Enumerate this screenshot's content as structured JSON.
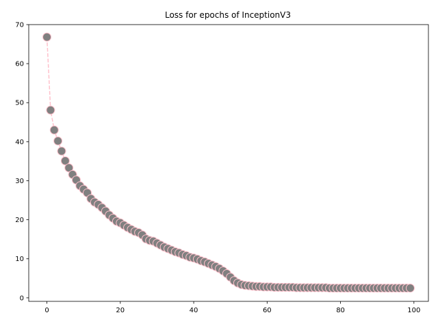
{
  "chart_data": {
    "type": "scatter",
    "title": "Loss for epochs of InceptionV3",
    "xlabel": "",
    "ylabel": "",
    "xlim": [
      -4.95,
      103.95
    ],
    "ylim": [
      -0.9,
      70
    ],
    "xticks": [
      0,
      20,
      40,
      60,
      80,
      100
    ],
    "yticks": [
      0,
      10,
      20,
      30,
      40,
      50,
      60,
      70
    ],
    "grid": false,
    "marker_face_color": "#808080",
    "marker_edge_color": "#ffc0cb",
    "line_color": "#ffc0cb",
    "line_style": "dashed",
    "x": [
      0,
      1,
      2,
      3,
      4,
      5,
      6,
      7,
      8,
      9,
      10,
      11,
      12,
      13,
      14,
      15,
      16,
      17,
      18,
      19,
      20,
      21,
      22,
      23,
      24,
      25,
      26,
      27,
      28,
      29,
      30,
      31,
      32,
      33,
      34,
      35,
      36,
      37,
      38,
      39,
      40,
      41,
      42,
      43,
      44,
      45,
      46,
      47,
      48,
      49,
      50,
      51,
      52,
      53,
      54,
      55,
      56,
      57,
      58,
      59,
      60,
      61,
      62,
      63,
      64,
      65,
      66,
      67,
      68,
      69,
      70,
      71,
      72,
      73,
      74,
      75,
      76,
      77,
      78,
      79,
      80,
      81,
      82,
      83,
      84,
      85,
      86,
      87,
      88,
      89,
      90,
      91,
      92,
      93,
      94,
      95,
      96,
      97,
      98,
      99
    ],
    "y": [
      66.8,
      48.1,
      43.0,
      40.2,
      37.6,
      35.1,
      33.3,
      31.6,
      30.2,
      28.7,
      27.8,
      26.9,
      25.4,
      24.5,
      23.9,
      23.1,
      22.2,
      21.2,
      20.4,
      19.6,
      19.2,
      18.6,
      18.0,
      17.5,
      17.0,
      16.7,
      16.1,
      15.1,
      14.7,
      14.5,
      14.0,
      13.5,
      13.0,
      12.6,
      12.2,
      11.8,
      11.5,
      11.1,
      10.8,
      10.4,
      10.2,
      9.9,
      9.5,
      9.2,
      8.8,
      8.4,
      8.0,
      7.5,
      6.9,
      6.2,
      5.3,
      4.4,
      3.8,
      3.4,
      3.2,
      3.1,
      3.0,
      2.9,
      2.9,
      2.8,
      2.8,
      2.8,
      2.7,
      2.7,
      2.7,
      2.7,
      2.7,
      2.7,
      2.6,
      2.6,
      2.6,
      2.6,
      2.6,
      2.6,
      2.6,
      2.6,
      2.6,
      2.5,
      2.5,
      2.5,
      2.5,
      2.5,
      2.5,
      2.5,
      2.5,
      2.5,
      2.5,
      2.5,
      2.5,
      2.5,
      2.5,
      2.5,
      2.5,
      2.5,
      2.5,
      2.5,
      2.5,
      2.5,
      2.5,
      2.5
    ]
  }
}
